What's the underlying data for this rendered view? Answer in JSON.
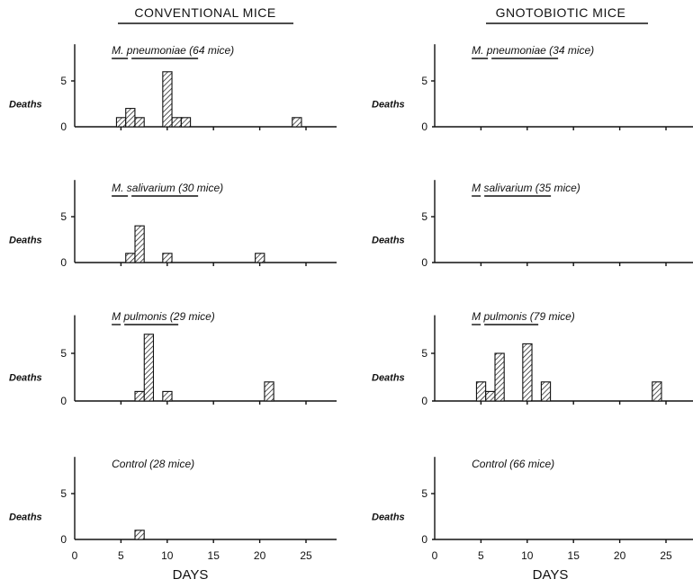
{
  "column_titles": [
    "CONVENTIONAL MICE",
    "GNOTOBIOTIC MICE"
  ],
  "chart_data": [
    {
      "type": "bar",
      "column": "CONVENTIONAL MICE",
      "title": "M. pneumoniae (64 mice)",
      "title_parts": [
        "M.",
        "pneumoniae",
        "(64 mice)"
      ],
      "ylabel": "Deaths",
      "xlabel": "",
      "ylim": [
        0,
        9
      ],
      "xlim": [
        0,
        28
      ],
      "yticks": [
        "0",
        "5"
      ],
      "xticks": [],
      "x": [
        5,
        6,
        7,
        10,
        11,
        12,
        24
      ],
      "values": [
        1,
        2,
        1,
        6,
        1,
        1,
        1
      ]
    },
    {
      "type": "bar",
      "column": "GNOTOBIOTIC MICE",
      "title": "M. pneumoniae (34 mice)",
      "title_parts": [
        "M.",
        "pneumoniae",
        "(34 mice)"
      ],
      "ylabel": "Deaths",
      "xlabel": "",
      "ylim": [
        0,
        9
      ],
      "xlim": [
        0,
        28
      ],
      "yticks": [
        "0",
        "5"
      ],
      "xticks": [],
      "x": [],
      "values": []
    },
    {
      "type": "bar",
      "column": "CONVENTIONAL MICE",
      "title": "M. salivarium (30 mice)",
      "title_parts": [
        "M.",
        "salivarium",
        "(30 mice)"
      ],
      "ylabel": "Deaths",
      "xlabel": "",
      "ylim": [
        0,
        9
      ],
      "xlim": [
        0,
        28
      ],
      "yticks": [
        "0",
        "5"
      ],
      "xticks": [],
      "x": [
        6,
        7,
        10,
        20
      ],
      "values": [
        1,
        4,
        1,
        1
      ]
    },
    {
      "type": "bar",
      "column": "GNOTOBIOTIC MICE",
      "title": "M salivarium (35 mice)",
      "title_parts": [
        "M",
        "salivarium",
        "(35 mice)"
      ],
      "ylabel": "Deaths",
      "xlabel": "",
      "ylim": [
        0,
        9
      ],
      "xlim": [
        0,
        28
      ],
      "yticks": [
        "0",
        "5"
      ],
      "xticks": [],
      "x": [],
      "values": []
    },
    {
      "type": "bar",
      "column": "CONVENTIONAL MICE",
      "title": "M pulmonis (29 mice)",
      "title_parts": [
        "M",
        "pulmonis",
        "(29 mice)"
      ],
      "ylabel": "Deaths",
      "xlabel": "",
      "ylim": [
        0,
        9
      ],
      "xlim": [
        0,
        28
      ],
      "yticks": [
        "0",
        "5"
      ],
      "xticks": [],
      "x": [
        7,
        8,
        10,
        21
      ],
      "values": [
        1,
        7,
        1,
        2
      ]
    },
    {
      "type": "bar",
      "column": "GNOTOBIOTIC MICE",
      "title": "M pulmonis (79 mice)",
      "title_parts": [
        "M",
        "pulmonis",
        "(79 mice)"
      ],
      "ylabel": "Deaths",
      "xlabel": "",
      "ylim": [
        0,
        9
      ],
      "xlim": [
        0,
        28
      ],
      "yticks": [
        "0",
        "5"
      ],
      "xticks": [],
      "x": [
        5,
        6,
        7,
        10,
        12,
        24
      ],
      "values": [
        2,
        1,
        5,
        6,
        2,
        2
      ]
    },
    {
      "type": "bar",
      "column": "CONVENTIONAL MICE",
      "title": "Control (28 mice)",
      "title_parts": [
        "Control",
        "",
        "(28 mice)"
      ],
      "ylabel": "Deaths",
      "xlabel": "DAYS",
      "ylim": [
        0,
        9
      ],
      "xlim": [
        0,
        28
      ],
      "yticks": [
        "0",
        "5"
      ],
      "xticks": [
        "0",
        "5",
        "10",
        "15",
        "20",
        "25"
      ],
      "x": [
        7
      ],
      "values": [
        1
      ]
    },
    {
      "type": "bar",
      "column": "GNOTOBIOTIC MICE",
      "title": "Control (66 mice)",
      "title_parts": [
        "Control",
        "",
        "(66 mice)"
      ],
      "ylabel": "Deaths",
      "xlabel": "DAYS",
      "ylim": [
        0,
        9
      ],
      "xlim": [
        0,
        28
      ],
      "yticks": [
        "0",
        "5"
      ],
      "xticks": [
        "0",
        "5",
        "10",
        "15",
        "20",
        "25"
      ],
      "x": [],
      "values": []
    }
  ]
}
